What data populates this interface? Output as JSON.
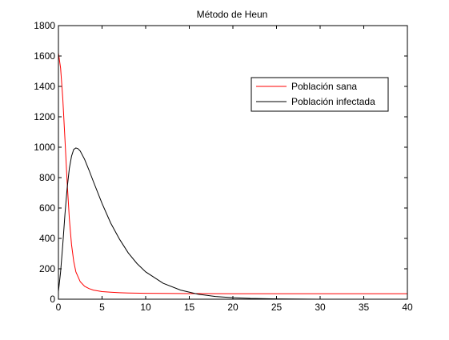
{
  "chart_data": {
    "type": "line",
    "title": "Método de Heun",
    "xlabel": "",
    "ylabel": "",
    "xlim": [
      0,
      40
    ],
    "ylim": [
      0,
      1800
    ],
    "xticks": [
      0,
      5,
      10,
      15,
      20,
      25,
      30,
      35,
      40
    ],
    "yticks": [
      0,
      200,
      400,
      600,
      800,
      1000,
      1200,
      1400,
      1600,
      1800
    ],
    "grid": false,
    "legend_position": "top-right",
    "series": [
      {
        "name": "Población sana",
        "color": "#ff0000",
        "x": [
          0,
          0.25,
          0.5,
          0.75,
          1,
          1.25,
          1.5,
          1.75,
          2,
          2.5,
          3,
          3.5,
          4,
          5,
          6,
          7,
          8,
          10,
          12,
          15,
          20,
          25,
          30,
          35,
          40
        ],
        "y": [
          1620,
          1520,
          1320,
          1050,
          770,
          530,
          360,
          250,
          180,
          115,
          85,
          70,
          60,
          50,
          46,
          43,
          41,
          39,
          38,
          37,
          36,
          36,
          36,
          36,
          36
        ]
      },
      {
        "name": "Población infectada",
        "color": "#000000",
        "x": [
          0,
          0.25,
          0.5,
          0.75,
          1,
          1.25,
          1.5,
          1.75,
          2,
          2.25,
          2.5,
          3,
          3.5,
          4,
          5,
          6,
          7,
          8,
          9,
          10,
          12,
          14,
          16,
          18,
          20,
          22,
          25,
          30,
          35,
          40
        ],
        "y": [
          50,
          180,
          360,
          560,
          730,
          860,
          940,
          985,
          995,
          990,
          975,
          920,
          850,
          775,
          630,
          500,
          395,
          305,
          235,
          180,
          105,
          60,
          33,
          18,
          10,
          5,
          2,
          0,
          0,
          0
        ]
      }
    ]
  }
}
